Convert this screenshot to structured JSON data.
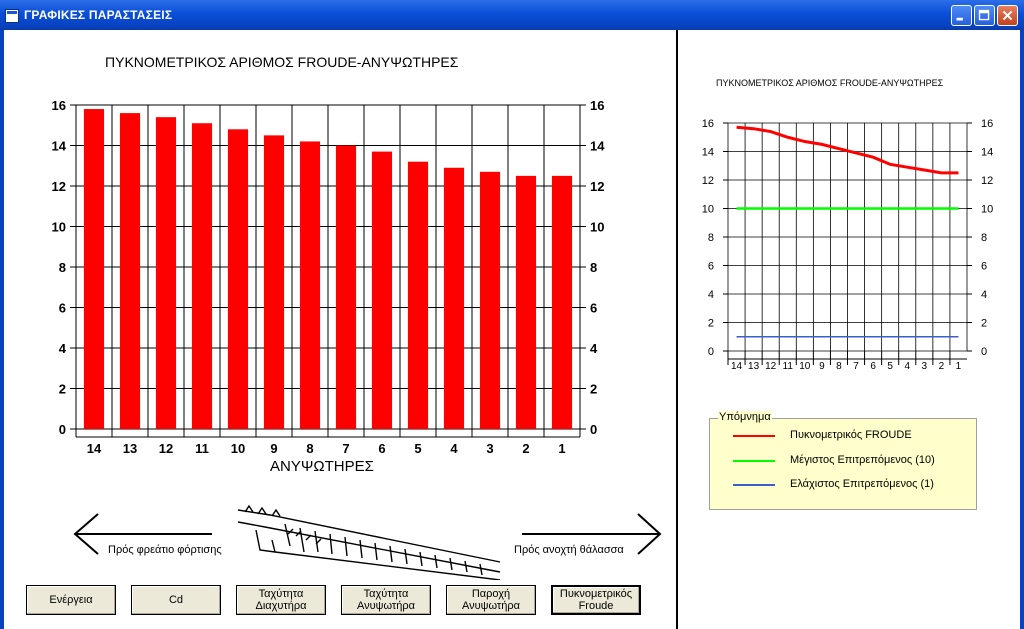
{
  "window": {
    "title": "ΓΡΑΦΙΚΕΣ ΠΑΡΑΣΤΑΣΕΙΣ"
  },
  "left_chart": {
    "title": "ΠΥΚΝΟΜΕΤΡΙΚΟΣ ΑΡΙΘΜΟΣ FROUDE-ΑΝΥΨΩΤΗΡΕΣ",
    "xlabel": "ΑΝΥΨΩΤΗΡΕΣ"
  },
  "right_chart": {
    "title": "ΠΥΚΝΟΜΕΤΡΙΚΟΣ ΑΡΙΘΜΟΣ FROUDE-ΑΝΥΨΩΤΗΡΕΣ"
  },
  "diagram": {
    "left_arrow_label": "Πρός φρεάτιο φόρτισης",
    "right_arrow_label": "Πρός ανοχτή θάλασσα"
  },
  "legend": {
    "caption": "Υπόμνημα",
    "items": [
      {
        "label": "Πυκνομετρικός FROUDE",
        "color": "#ff0000"
      },
      {
        "label": "Μέγιστος Επιτρεπόμενος (10)",
        "color": "#00ff00"
      },
      {
        "label": "Ελάχιστος Επιτρεπόμενος (1)",
        "color": "#3a5fcd"
      }
    ]
  },
  "buttons": [
    {
      "label": "Ενέργεια"
    },
    {
      "label": "Cd"
    },
    {
      "label": "Ταχύτητα Διαχυτήρα"
    },
    {
      "label": "Ταχύτητα Ανυψωτήρα"
    },
    {
      "label": "Παροχή Ανυψωτήρα"
    },
    {
      "label": "Πυκνομετρικός Froude"
    }
  ],
  "chart_data": [
    {
      "type": "bar",
      "title": "ΠΥΚΝΟΜΕΤΡΙΚΟΣ ΑΡΙΘΜΟΣ FROUDE-ΑΝΥΨΩΤΗΡΕΣ",
      "xlabel": "ΑΝΥΨΩΤΗΡΕΣ",
      "ylabel": "",
      "categories": [
        "14",
        "13",
        "12",
        "11",
        "10",
        "9",
        "8",
        "7",
        "6",
        "5",
        "4",
        "3",
        "2",
        "1"
      ],
      "values": [
        15.8,
        15.6,
        15.4,
        15.1,
        14.8,
        14.5,
        14.2,
        14.0,
        13.7,
        13.2,
        12.9,
        12.7,
        12.5,
        12.5
      ],
      "ylim": [
        0,
        16
      ],
      "yticks": [
        0,
        2,
        4,
        6,
        8,
        10,
        12,
        14,
        16
      ],
      "color": "#ff0000",
      "grid": true
    },
    {
      "type": "line",
      "title": "ΠΥΚΝΟΜΕΤΡΙΚΟΣ ΑΡΙΘΜΟΣ FROUDE-ΑΝΥΨΩΤΗΡΕΣ",
      "categories": [
        "14",
        "13",
        "12",
        "11",
        "10",
        "9",
        "8",
        "7",
        "6",
        "5",
        "4",
        "3",
        "2",
        "1"
      ],
      "ylim": [
        0,
        16
      ],
      "yticks": [
        0,
        2,
        4,
        6,
        8,
        10,
        12,
        14,
        16
      ],
      "grid": true,
      "series": [
        {
          "name": "Πυκνομετρικός FROUDE",
          "color": "#ff0000",
          "values": [
            15.7,
            15.6,
            15.4,
            15.0,
            14.7,
            14.5,
            14.2,
            13.9,
            13.6,
            13.1,
            12.9,
            12.7,
            12.5,
            12.5
          ]
        },
        {
          "name": "Μέγιστος Επιτρεπόμενος (10)",
          "color": "#00ff00",
          "values": [
            10,
            10,
            10,
            10,
            10,
            10,
            10,
            10,
            10,
            10,
            10,
            10,
            10,
            10
          ]
        },
        {
          "name": "Ελάχιστος Επιτρεπόμενος (1)",
          "color": "#3a5fcd",
          "values": [
            1,
            1,
            1,
            1,
            1,
            1,
            1,
            1,
            1,
            1,
            1,
            1,
            1,
            1
          ]
        }
      ]
    }
  ]
}
